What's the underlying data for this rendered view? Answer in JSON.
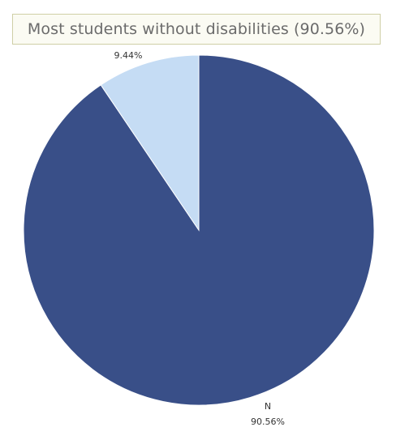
{
  "chart_data": {
    "type": "pie",
    "title": "Most students without disabilities (90.56%)",
    "slices": [
      {
        "category": "N",
        "value": 90.56,
        "label": "90.56%",
        "color": "#394f88"
      },
      {
        "category": "",
        "value": 9.44,
        "label": "9.44%",
        "color": "#c5dcf4"
      }
    ]
  }
}
